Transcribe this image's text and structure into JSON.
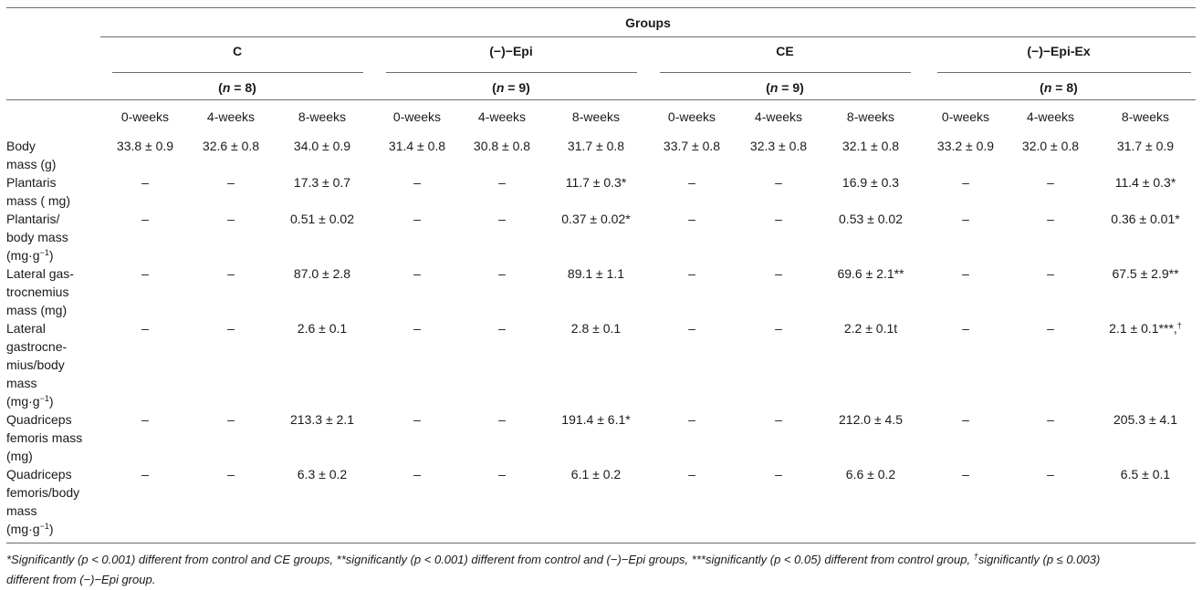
{
  "table": {
    "groups_header": "Groups",
    "groups": [
      {
        "name": "C",
        "n": "8"
      },
      {
        "name": "(−)−Epi",
        "n": "9"
      },
      {
        "name": "CE",
        "n": "9"
      },
      {
        "name": "(−)−Epi-Ex",
        "n": "8"
      }
    ],
    "time_labels": [
      "0-weeks",
      "4-weeks",
      "8-weeks"
    ],
    "rows": [
      {
        "label": "Body mass (g)",
        "cells": [
          "33.8 ± 0.9",
          "32.6 ± 0.8",
          "34.0 ± 0.9",
          "31.4 ± 0.8",
          "30.8 ± 0.8",
          "31.7 ± 0.8",
          "33.7 ± 0.8",
          "32.3 ± 0.8",
          "32.1 ± 0.8",
          "33.2 ± 0.9",
          "32.0 ± 0.8",
          "31.7 ± 0.9"
        ]
      },
      {
        "label": "Plantaris mass ( mg)",
        "cells": [
          "–",
          "–",
          "17.3 ± 0.7",
          "–",
          "–",
          "11.7 ± 0.3*",
          "–",
          "–",
          "16.9 ± 0.3",
          "–",
          "–",
          "11.4 ± 0.3*"
        ]
      },
      {
        "label": "Plantaris/ body mass (mg·g⁻¹)",
        "cells": [
          "–",
          "–",
          "0.51 ± 0.02",
          "–",
          "–",
          "0.37 ± 0.02*",
          "–",
          "–",
          "0.53 ± 0.02",
          "–",
          "–",
          "0.36 ± 0.01*"
        ]
      },
      {
        "label": "Lateral gas- trocnemius mass (mg)",
        "cells": [
          "–",
          "–",
          "87.0 ± 2.8",
          "–",
          "–",
          "89.1 ± 1.1",
          "–",
          "–",
          "69.6 ± 2.1**",
          "–",
          "–",
          "67.5 ± 2.9**"
        ]
      },
      {
        "label": "Lateral gastrocne- mius/body mass (mg·g⁻¹)",
        "cells": [
          "–",
          "–",
          "2.6 ± 0.1",
          "–",
          "–",
          "2.8 ± 0.1",
          "–",
          "–",
          "2.2 ± 0.1t",
          "–",
          "–",
          "2.1 ± 0.1***,†"
        ]
      },
      {
        "label": "Quadriceps femoris mass (mg)",
        "cells": [
          "–",
          "–",
          "213.3 ± 2.1",
          "–",
          "–",
          "191.4 ± 6.1*",
          "–",
          "–",
          "212.0 ± 4.5",
          "–",
          "–",
          "205.3 ± 4.1"
        ]
      },
      {
        "label": "Quadriceps femoris/body mass (mg·g⁻¹)",
        "cells": [
          "–",
          "–",
          "6.3 ± 0.2",
          "–",
          "–",
          "6.1 ± 0.2",
          "–",
          "–",
          "6.6 ± 0.2",
          "–",
          "–",
          "6.5 ± 0.1"
        ]
      }
    ]
  },
  "footnote": {
    "line1": "*Significantly (p < 0.001) different from control and CE groups, **significantly (p < 0.001) different from control and (−)−Epi groups, ***significantly (p < 0.05) different from control group, †significantly (p ≤ 0.003)",
    "line2": "different from (−)−Epi group."
  }
}
